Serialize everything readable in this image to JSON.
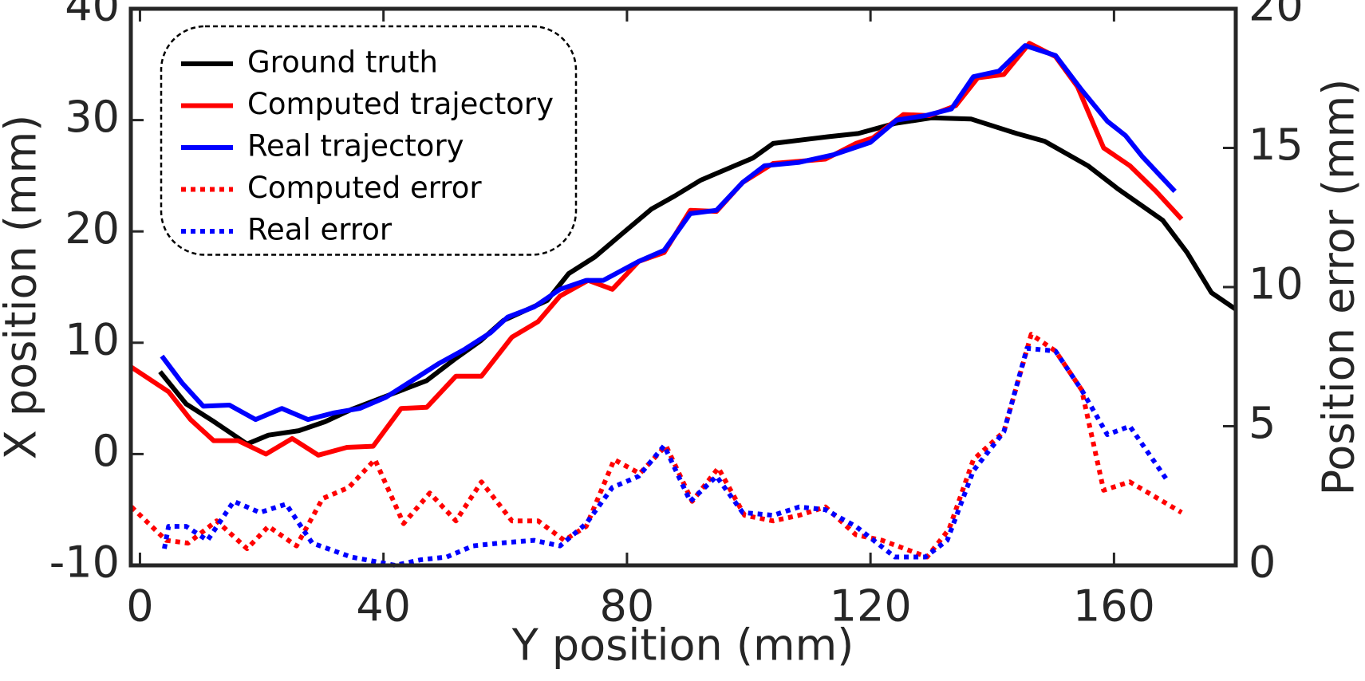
{
  "chart_data": {
    "type": "line",
    "xlabel": "Y position (mm)",
    "ylabel": "X position (mm)",
    "y2label": "Position error (mm)",
    "xlim": [
      -1.5,
      180
    ],
    "xticks": [
      0,
      40,
      80,
      120,
      160
    ],
    "ylim": [
      -10,
      40
    ],
    "yticks": [
      -10,
      0,
      10,
      20,
      30,
      40
    ],
    "y2lim": [
      0,
      20
    ],
    "y2ticks": [
      0,
      5,
      10,
      15,
      20
    ],
    "legend": "upper left",
    "series": [
      {
        "name": "Ground truth",
        "color": "#000000",
        "style": "solid",
        "x": [
          3.3,
          7.6,
          11.9,
          17.6,
          21.1,
          26.1,
          30.4,
          34.7,
          39,
          43.3,
          47.1,
          51.9,
          56,
          59.7,
          66.9,
          70.4,
          74.7,
          79,
          84,
          87.9,
          92.1,
          96.4,
          100.7,
          104,
          113,
          118,
          124,
          130,
          136.5,
          144,
          148.6,
          155.7,
          160.7,
          168,
          172,
          176,
          180
        ],
        "values": [
          7.4,
          4.5,
          3.0,
          0.9,
          1.7,
          2.1,
          2.9,
          4.0,
          4.9,
          5.8,
          6.6,
          8.6,
          10.2,
          12.0,
          13.8,
          16.2,
          17.7,
          19.7,
          22.0,
          23.2,
          24.6,
          25.6,
          26.6,
          27.9,
          28.5,
          28.8,
          29.7,
          30.2,
          30.1,
          28.8,
          28.1,
          25.9,
          23.8,
          21.0,
          18.1,
          14.5,
          13.0
        ]
      },
      {
        "name": "Computed trajectory",
        "color": "#ff0000",
        "style": "solid",
        "x": [
          -1.4,
          4.7,
          8.3,
          12.1,
          16.1,
          20.7,
          25,
          29.3,
          34,
          38.3,
          42.9,
          47.1,
          51.9,
          56.1,
          61.1,
          65.4,
          69,
          73.6,
          77.6,
          81.9,
          86.1,
          90.4,
          94.7,
          99,
          104,
          108.3,
          112.6,
          117.6,
          120.4,
          125.4,
          129.7,
          134,
          137.6,
          141.9,
          146.1,
          150.4,
          154,
          158.3,
          162.6,
          166.9,
          171.1
        ],
        "values": [
          7.8,
          5.6,
          3.1,
          1.2,
          1.2,
          0.0,
          1.4,
          -0.1,
          0.6,
          0.7,
          4.1,
          4.2,
          7.0,
          7.0,
          10.5,
          11.9,
          14.2,
          15.6,
          14.8,
          17.3,
          18.1,
          21.9,
          21.8,
          24.4,
          26.1,
          26.3,
          26.5,
          27.9,
          28.4,
          30.5,
          30.4,
          31.3,
          33.8,
          34.1,
          36.9,
          35.7,
          33.0,
          27.5,
          25.9,
          23.6,
          21.1
        ]
      },
      {
        "name": "Real trajectory",
        "color": "#0000ff",
        "style": "solid",
        "x": [
          3.6,
          6.9,
          10.4,
          14.7,
          19,
          23.3,
          27.6,
          31.9,
          36.1,
          40.4,
          44.7,
          49,
          53.3,
          57.6,
          60.4,
          64.7,
          69,
          73.3,
          76.1,
          81.9,
          86.1,
          90.4,
          94.7,
          99,
          102.6,
          108.3,
          114,
          120,
          124.3,
          129,
          133.3,
          136.9,
          141.1,
          145.4,
          150.4,
          154.7,
          158.9,
          161.9,
          164.7,
          170
        ],
        "values": [
          8.8,
          6.4,
          4.3,
          4.4,
          3.1,
          4.1,
          3.1,
          3.7,
          4.1,
          5.1,
          6.6,
          8.1,
          9.4,
          10.9,
          12.3,
          13.2,
          14.8,
          15.6,
          15.6,
          17.3,
          18.3,
          21.6,
          21.9,
          24.4,
          25.9,
          26.2,
          26.9,
          28.0,
          30.0,
          30.4,
          31.0,
          33.9,
          34.4,
          36.7,
          35.8,
          32.7,
          29.9,
          28.6,
          26.7,
          23.6
        ]
      },
      {
        "name": "Computed error",
        "color": "#ff0000",
        "style": "dotted",
        "axis": "y2",
        "x": [
          -1.4,
          4.3,
          7.9,
          12.6,
          17.6,
          21.1,
          25.7,
          30,
          34.3,
          38.6,
          43.3,
          47.6,
          51.9,
          56.1,
          61.1,
          65.4,
          69.7,
          73.3,
          77.9,
          82.1,
          86.4,
          90.7,
          95,
          99.3,
          104,
          108.3,
          112.6,
          117.6,
          121.9,
          129.3,
          132.9,
          136.9,
          141.9,
          146.4,
          150.4,
          154.7,
          158.3,
          162.6,
          171.1
        ],
        "values": [
          2.1,
          0.9,
          0.8,
          1.6,
          0.6,
          1.4,
          0.7,
          2.4,
          2.8,
          3.8,
          1.5,
          2.6,
          1.6,
          3.0,
          1.6,
          1.6,
          0.9,
          1.4,
          3.8,
          3.3,
          4.3,
          2.3,
          3.5,
          1.8,
          1.6,
          1.8,
          2.1,
          1.1,
          0.9,
          0.3,
          1.3,
          3.8,
          4.8,
          8.3,
          7.7,
          6.3,
          2.7,
          3.0,
          1.9
        ]
      },
      {
        "name": "Real error",
        "color": "#0000ff",
        "style": "dotted",
        "axis": "y2",
        "x": [
          4,
          4.7,
          7.6,
          11.1,
          15.4,
          19.7,
          24,
          28.3,
          34.7,
          41.9,
          46.1,
          50.4,
          54.7,
          59,
          64.7,
          69,
          73.3,
          77.6,
          81.9,
          86.1,
          90.4,
          94.7,
          99,
          104,
          108.3,
          112.6,
          117.6,
          124,
          129,
          132.6,
          136.9,
          141.9,
          145.7,
          150.4,
          154.7,
          158.9,
          162.6,
          168.6
        ],
        "values": [
          0.6,
          1.4,
          1.4,
          0.9,
          2.3,
          1.9,
          2.2,
          0.8,
          0.3,
          0,
          0.2,
          0.3,
          0.7,
          0.8,
          0.9,
          0.7,
          1.5,
          2.8,
          3.2,
          4.3,
          2.3,
          3.2,
          1.9,
          1.8,
          2.1,
          2.0,
          1.4,
          0.3,
          0.3,
          0.9,
          3.4,
          4.8,
          7.8,
          7.7,
          6.3,
          4.7,
          5.0,
          3.1
        ]
      }
    ]
  }
}
